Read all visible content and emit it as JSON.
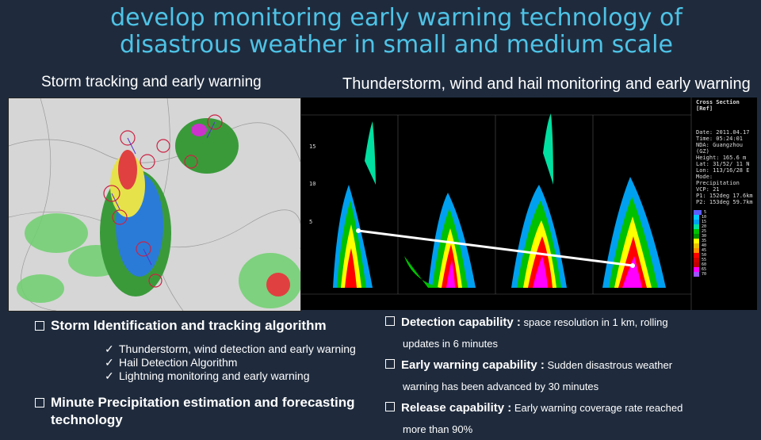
{
  "title": {
    "line1": "develop monitoring early warning technology of",
    "line2": "disastrous weather in small and medium scale"
  },
  "subtitles": {
    "left": "Storm tracking and early warning",
    "right": "Thunderstorm, wind and hail monitoring and early warning"
  },
  "cross_section": {
    "header": "Cross Section [Ref]",
    "info": [
      "Date: 2011.04.17",
      "Time: 05:24:01",
      "NDA: Guangzhou (GZ)",
      "Height: 165.6 m",
      "Lat: 31/52/ 11 N",
      "Lon: 113/16/28 E",
      "Mode: Precipitation",
      "VCP: 21",
      "P1: 152deg 17.6km",
      "P2: 153deg 59.7km"
    ],
    "legend_values": [
      "5",
      "10",
      "15",
      "20",
      "25",
      "30",
      "35",
      "40",
      "45",
      "50",
      "55",
      "60",
      "65",
      "70"
    ],
    "legend_colors": [
      "#5c5cff",
      "#00c8ff",
      "#00a0f0",
      "#00e0a0",
      "#00c000",
      "#009000",
      "#ffff00",
      "#e8c000",
      "#ff9000",
      "#ff0000",
      "#d00000",
      "#c00000",
      "#ff00ff",
      "#9955ff"
    ],
    "axis_ticks": [
      "15",
      "10",
      "5"
    ]
  },
  "left_bullets": {
    "heading1": "Storm Identification and tracking algorithm",
    "items": [
      "Thunderstorm, wind detection and early warning",
      "Hail Detection Algorithm",
      "Lightning monitoring and early warning"
    ],
    "heading2": "Minute Precipitation estimation and forecasting technology"
  },
  "right_bullets": [
    {
      "lead": "Detection capability :",
      "rest": " space resolution in 1 km, rolling",
      "cont": "updates in 6 minutes"
    },
    {
      "lead": "Early warning capability :",
      "rest": " Sudden disastrous weather",
      "cont": "warning has been advanced by 30 minutes"
    },
    {
      "lead": "Release capability :",
      "rest": " Early warning coverage rate reached",
      "cont": "more than 90%"
    }
  ],
  "glyphs": {
    "tick": "✓"
  }
}
